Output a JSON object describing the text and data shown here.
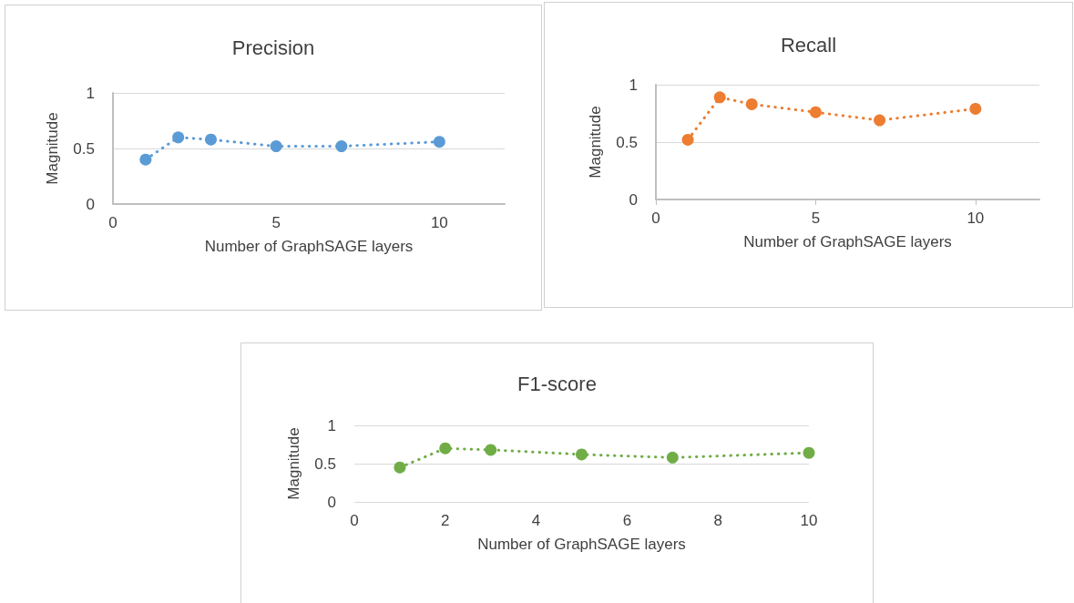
{
  "chart_data": [
    {
      "type": "line",
      "title": "Precision",
      "xlabel": "Number of GraphSAGE layers",
      "ylabel": "Magnitude",
      "x": [
        1,
        2,
        3,
        5,
        7,
        10
      ],
      "series": [
        {
          "color": "#5b9bd5",
          "values": [
            0.4,
            0.6,
            0.58,
            0.52,
            0.52,
            0.56
          ]
        }
      ],
      "xlim": [
        0,
        12
      ],
      "xticks": [
        0,
        5,
        10
      ],
      "ylim": [
        0,
        1
      ],
      "yticks": [
        0,
        0.5,
        1
      ],
      "grid": "y",
      "marker": "circle",
      "line_style": "dotted"
    },
    {
      "type": "line",
      "title": "Recall",
      "xlabel": "Number of GraphSAGE layers",
      "ylabel": "Magnitude",
      "x": [
        1,
        2,
        3,
        5,
        7,
        10
      ],
      "series": [
        {
          "color": "#ed7d31",
          "values": [
            0.52,
            0.89,
            0.83,
            0.76,
            0.69,
            0.79
          ]
        }
      ],
      "xlim": [
        0,
        12
      ],
      "xticks": [
        0,
        5,
        10
      ],
      "ylim": [
        0,
        1
      ],
      "yticks": [
        0,
        0.5,
        1
      ],
      "grid": "y",
      "marker": "circle",
      "line_style": "dotted"
    },
    {
      "type": "line",
      "title": "F1-score",
      "xlabel": "Number of GraphSAGE layers",
      "ylabel": "Magnitude",
      "x": [
        1,
        2,
        3,
        5,
        7,
        10
      ],
      "series": [
        {
          "color": "#70ad47",
          "values": [
            0.45,
            0.7,
            0.68,
            0.62,
            0.58,
            0.64
          ]
        }
      ],
      "xlim": [
        0,
        10
      ],
      "xticks": [
        0,
        2,
        4,
        6,
        8,
        10
      ],
      "ylim": [
        0,
        1
      ],
      "yticks": [
        0,
        0.5,
        1
      ],
      "grid": "y",
      "marker": "circle",
      "line_style": "dotted"
    }
  ]
}
